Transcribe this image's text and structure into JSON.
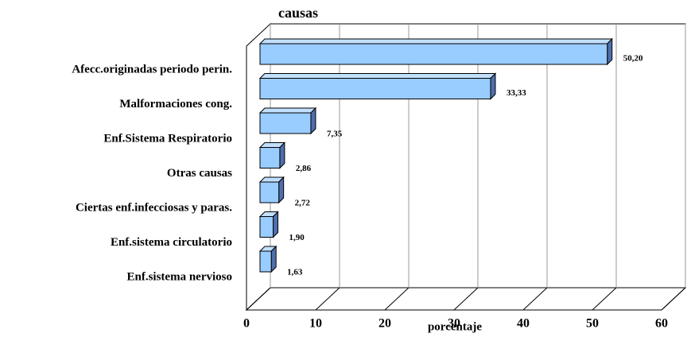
{
  "chart_data": {
    "type": "bar3d",
    "orientation": "horizontal",
    "title": "causas",
    "x_label": "porcentaje",
    "categories": [
      "Afecc.originadas periodo perin.",
      "Malformaciones cong.",
      "Enf.Sistema Respiratorio",
      "Otras causas",
      "Ciertas enf.infecciosas y paras.",
      "Enf.sistema circulatorio",
      "Enf.sistema nervioso"
    ],
    "values": [
      50.2,
      33.33,
      7.35,
      2.86,
      2.72,
      1.9,
      1.63
    ],
    "value_labels": [
      "50,20",
      "33,33",
      "7,35",
      "2,86",
      "2,72",
      "1,90",
      "1,63"
    ],
    "color": "#99ccff",
    "xlim": [
      0,
      60
    ],
    "xticks": [
      0,
      10,
      20,
      30,
      40,
      50,
      60
    ],
    "grid": true
  }
}
